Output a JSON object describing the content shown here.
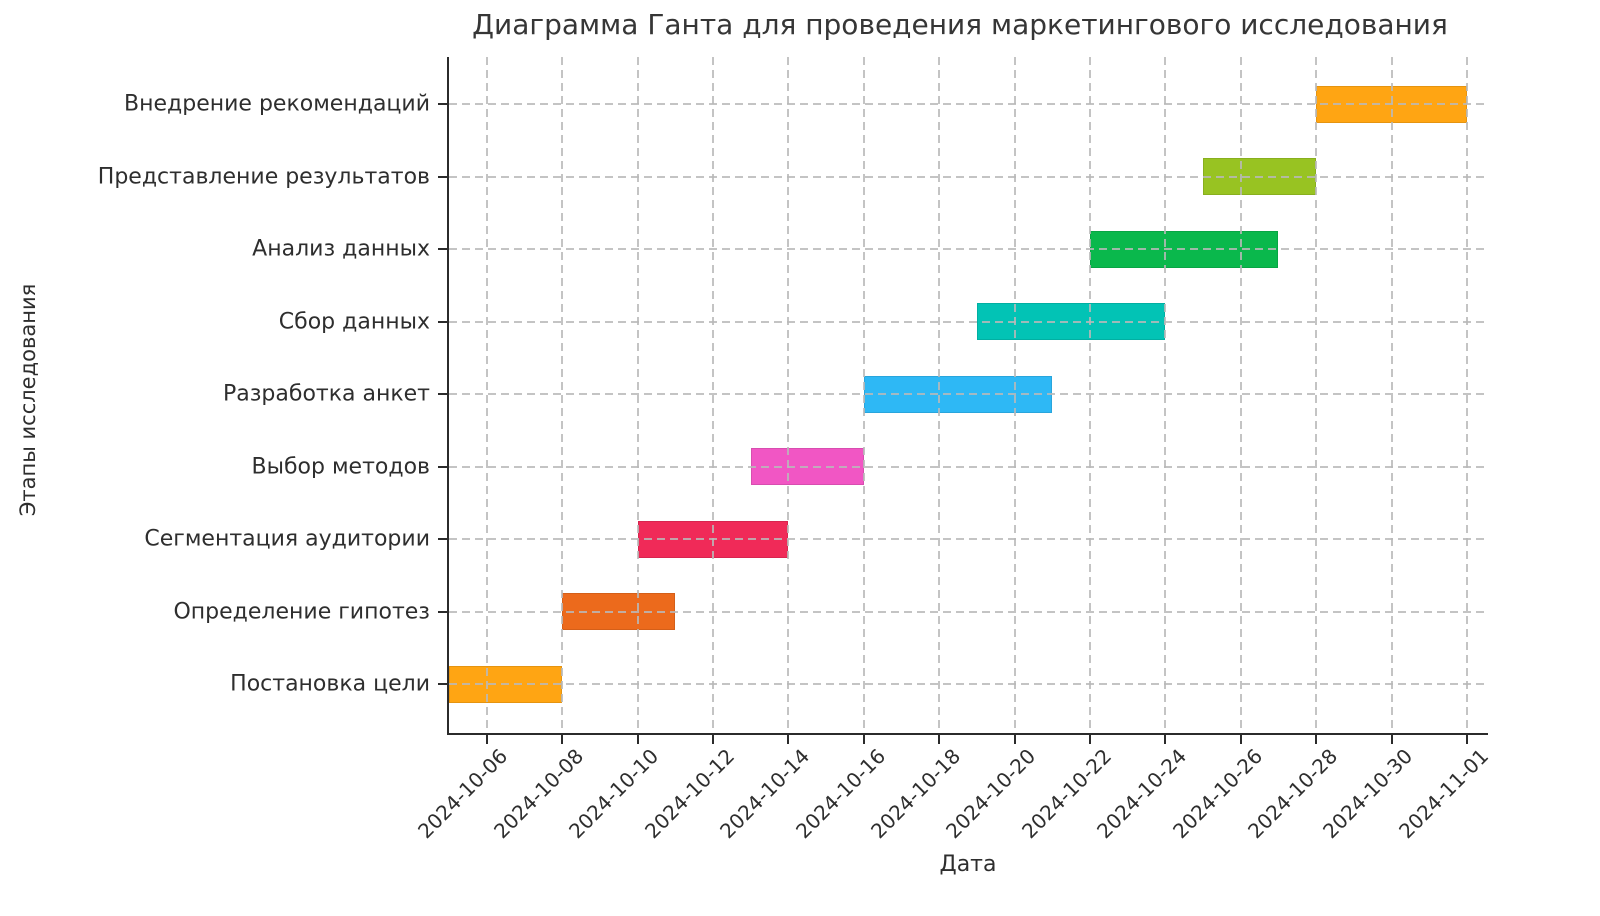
{
  "chart_data": {
    "type": "bar",
    "subtype": "gantt",
    "title": "Диаграмма Ганта для проведения маркетингового исследования",
    "xlabel": "Дата",
    "ylabel": "Этапы исследования",
    "legend": "none",
    "grid": "dashed-both-axes-on-top",
    "x_axis_start": "2024-10-05",
    "x_axis_total_days": 27.53,
    "x_ticks": [
      "2024-10-06",
      "2024-10-08",
      "2024-10-10",
      "2024-10-12",
      "2024-10-14",
      "2024-10-16",
      "2024-10-18",
      "2024-10-20",
      "2024-10-22",
      "2024-10-24",
      "2024-10-26",
      "2024-10-28",
      "2024-10-30",
      "2024-11-01"
    ],
    "x_tick_rotation_deg": 45,
    "tasks": [
      {
        "label": "Внедрение рекомендаций",
        "start": "2024-10-28",
        "end": "2024-11-01",
        "color": "#FFA513"
      },
      {
        "label": "Представление результатов",
        "start": "2024-10-25",
        "end": "2024-10-28",
        "color": "#98C322"
      },
      {
        "label": "Анализ данных",
        "start": "2024-10-22",
        "end": "2024-10-27",
        "color": "#0AB84C"
      },
      {
        "label": "Сбор данных",
        "start": "2024-10-19",
        "end": "2024-10-24",
        "color": "#02C3B5"
      },
      {
        "label": "Разработка анкет",
        "start": "2024-10-16",
        "end": "2024-10-21",
        "color": "#2EB8F5"
      },
      {
        "label": "Выбор методов",
        "start": "2024-10-13",
        "end": "2024-10-16",
        "color": "#F156C4"
      },
      {
        "label": "Сегментация аудитории",
        "start": "2024-10-10",
        "end": "2024-10-14",
        "color": "#F02A58"
      },
      {
        "label": "Определение гипотез",
        "start": "2024-10-08",
        "end": "2024-10-11",
        "color": "#EC6A1C"
      },
      {
        "label": "Постановка цели",
        "start": "2024-10-05",
        "end": "2024-10-08",
        "color": "#FFA513"
      }
    ]
  }
}
